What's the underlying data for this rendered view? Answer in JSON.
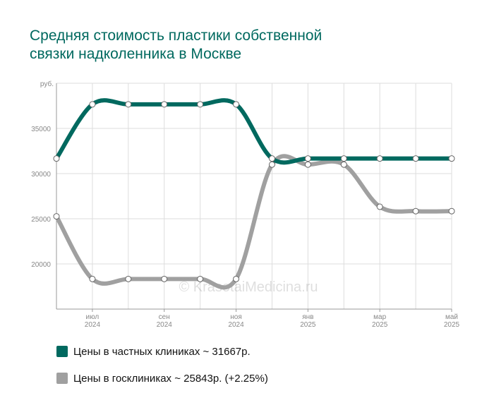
{
  "title_lines": [
    "Средняя стоимость пластики собственной",
    "связки надколенника в Москве"
  ],
  "watermark": "© KrasotaiMedicina.ru",
  "legend": [
    {
      "label": "Цены в частных клиниках ~ 31667р.",
      "color": "#00695f"
    },
    {
      "label": "Цены в госклиниках ~ 25843р. (+2.25%)",
      "color": "#a0a0a0"
    }
  ],
  "chart_data": {
    "type": "line",
    "ylabel": "руб.",
    "ylim": [
      15000,
      40000
    ],
    "yticks": [
      20000,
      25000,
      30000,
      35000
    ],
    "xticks": [
      {
        "i": 1,
        "month": "июл",
        "year": "2024"
      },
      {
        "i": 3,
        "month": "сен",
        "year": "2024"
      },
      {
        "i": 5,
        "month": "ноя",
        "year": "2024"
      },
      {
        "i": 7,
        "month": "янв",
        "year": "2025"
      },
      {
        "i": 9,
        "month": "мар",
        "year": "2025"
      },
      {
        "i": 11,
        "month": "май",
        "year": "2025"
      }
    ],
    "x_count": 12,
    "series": [
      {
        "name": "Цены в частных клиниках",
        "color": "#00695f",
        "values": [
          31667,
          37667,
          37667,
          37667,
          37667,
          37667,
          31667,
          31667,
          31667,
          31667,
          31667,
          31667
        ]
      },
      {
        "name": "Цены в госклиниках",
        "color": "#a0a0a0",
        "values": [
          25267,
          18333,
          18333,
          18333,
          18333,
          18333,
          31000,
          31000,
          31000,
          26333,
          25843,
          25843
        ]
      }
    ]
  }
}
